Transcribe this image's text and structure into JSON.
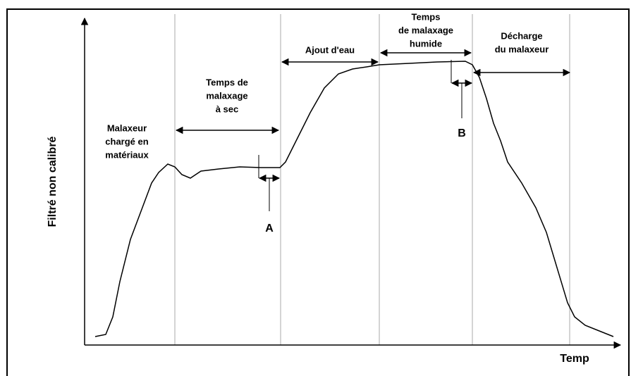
{
  "y_axis_label": "Filtré non calibré",
  "x_axis_label": "Temp",
  "phases": [
    {
      "lines": [
        "Malaxeur",
        "chargé en",
        "matériaux"
      ]
    },
    {
      "lines": [
        "Temps de",
        "malaxage",
        "à sec"
      ]
    },
    {
      "lines": [
        "Ajout d'eau"
      ]
    },
    {
      "lines": [
        "Temps",
        "de malaxage",
        "humide"
      ]
    },
    {
      "lines": [
        "Décharge",
        "du malaxeur"
      ]
    }
  ],
  "markers": [
    "A",
    "B"
  ]
}
